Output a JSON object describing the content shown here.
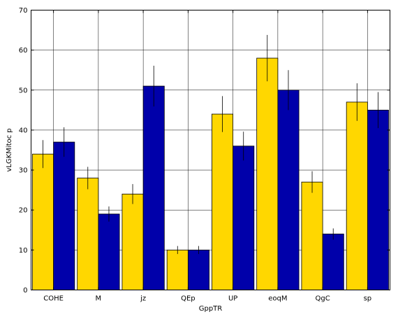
{
  "chart_data": {
    "type": "bar",
    "title": "",
    "xlabel": "GppTR",
    "ylabel": "vLGKMitoc p",
    "categories": [
      "COHE",
      "M",
      "jz",
      "QEp",
      "UP",
      "eoqM",
      "QgC",
      "sp"
    ],
    "series": [
      {
        "color": "#FFD700",
        "values": [
          34,
          28,
          24,
          10,
          44,
          58,
          27,
          47
        ],
        "error": [
          3.5,
          2.8,
          2.5,
          1.0,
          4.5,
          5.8,
          2.7,
          4.7
        ]
      },
      {
        "color": "#0000AA",
        "values": [
          37,
          19,
          51,
          10,
          36,
          50,
          14,
          45
        ],
        "error": [
          3.7,
          1.9,
          5.1,
          1.0,
          3.6,
          5.0,
          1.4,
          4.5
        ]
      }
    ],
    "ylim": [
      0,
      70
    ],
    "yticks": [
      0,
      10,
      20,
      30,
      40,
      50,
      60,
      70
    ],
    "grid": true,
    "legend": "none"
  }
}
